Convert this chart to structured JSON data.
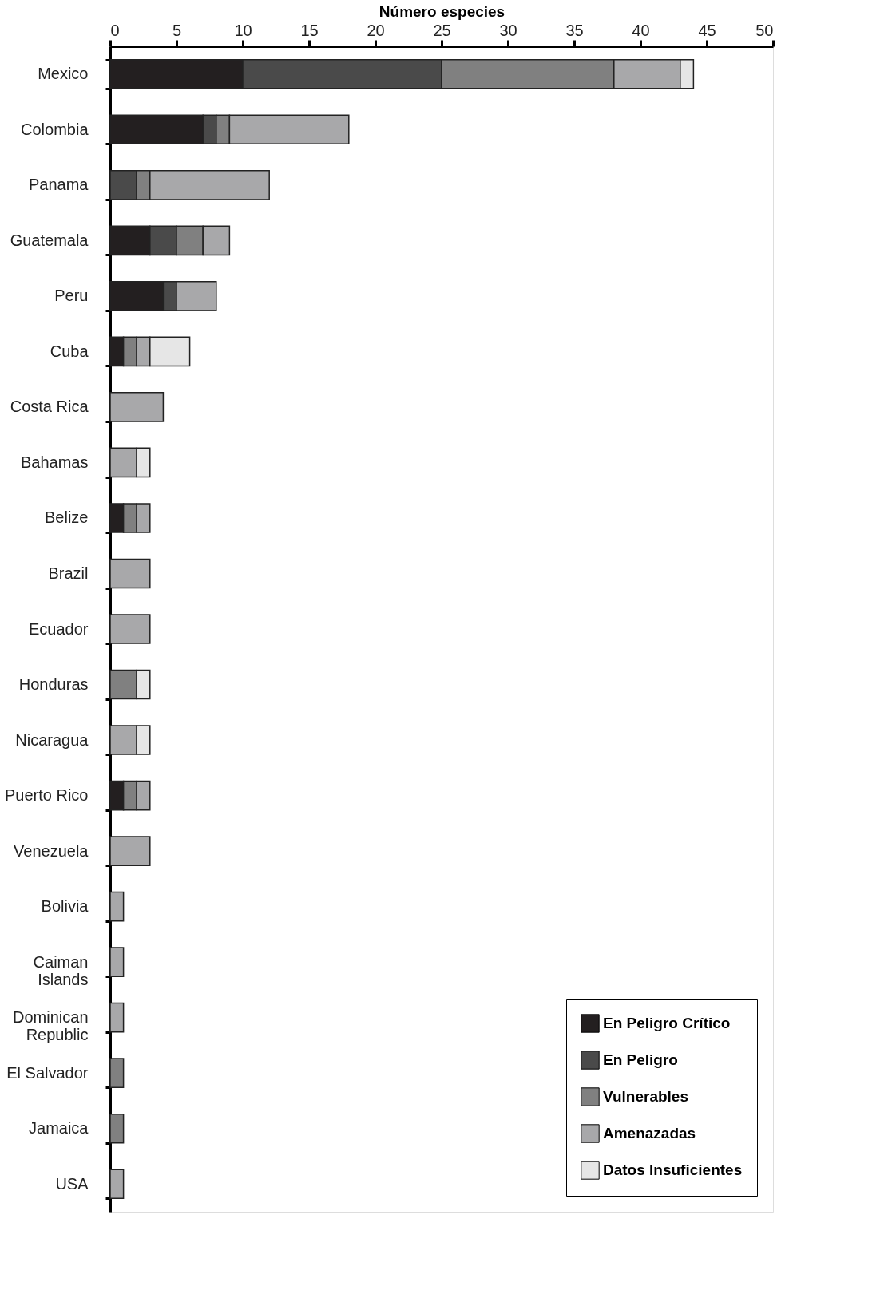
{
  "chart_data": {
    "type": "bar",
    "orientation": "horizontal",
    "stacked": true,
    "xlabel": "Número especies",
    "categories": [
      "Mexico",
      "Colombia",
      "Panama",
      "Guatemala",
      "Peru",
      "Cuba",
      "Costa Rica",
      "Bahamas",
      "Belize",
      "Brazil",
      "Ecuador",
      "Honduras",
      "Nicaragua",
      "Puerto Rico",
      "Venezuela",
      "Bolivia",
      "Caiman Islands",
      "Dominican Republic",
      "El Salvador",
      "Jamaica",
      "USA"
    ],
    "series": [
      {
        "name": "En Peligro Crítico",
        "color": "#231f20",
        "values": [
          10,
          7,
          0,
          3,
          4,
          1,
          0,
          0,
          1,
          0,
          0,
          0,
          0,
          1,
          0,
          0,
          0,
          0,
          0,
          0,
          0
        ]
      },
      {
        "name": "En Peligro",
        "color": "#4a4a4a",
        "values": [
          15,
          1,
          2,
          2,
          1,
          0,
          0,
          0,
          0,
          0,
          0,
          0,
          0,
          0,
          0,
          0,
          0,
          0,
          0,
          0,
          0
        ]
      },
      {
        "name": "Vulnerables",
        "color": "#808080",
        "values": [
          13,
          1,
          1,
          2,
          0,
          1,
          0,
          0,
          1,
          0,
          0,
          2,
          0,
          1,
          0,
          0,
          0,
          0,
          1,
          1,
          0
        ]
      },
      {
        "name": "Amenazadas",
        "color": "#a8a8aa",
        "values": [
          5,
          9,
          9,
          2,
          3,
          1,
          4,
          2,
          1,
          3,
          3,
          0,
          2,
          1,
          3,
          1,
          1,
          1,
          0,
          0,
          1
        ]
      },
      {
        "name": "Datos Insuficientes",
        "color": "#e6e6e6",
        "values": [
          1,
          0,
          0,
          0,
          0,
          3,
          0,
          1,
          0,
          0,
          0,
          1,
          1,
          0,
          0,
          0,
          0,
          0,
          0,
          0,
          0
        ]
      }
    ],
    "xlim": [
      0,
      50
    ],
    "xticks": [
      0,
      5,
      10,
      15,
      20,
      25,
      30,
      35,
      40,
      45,
      50
    ],
    "legend": "bottom right",
    "grid": false
  }
}
